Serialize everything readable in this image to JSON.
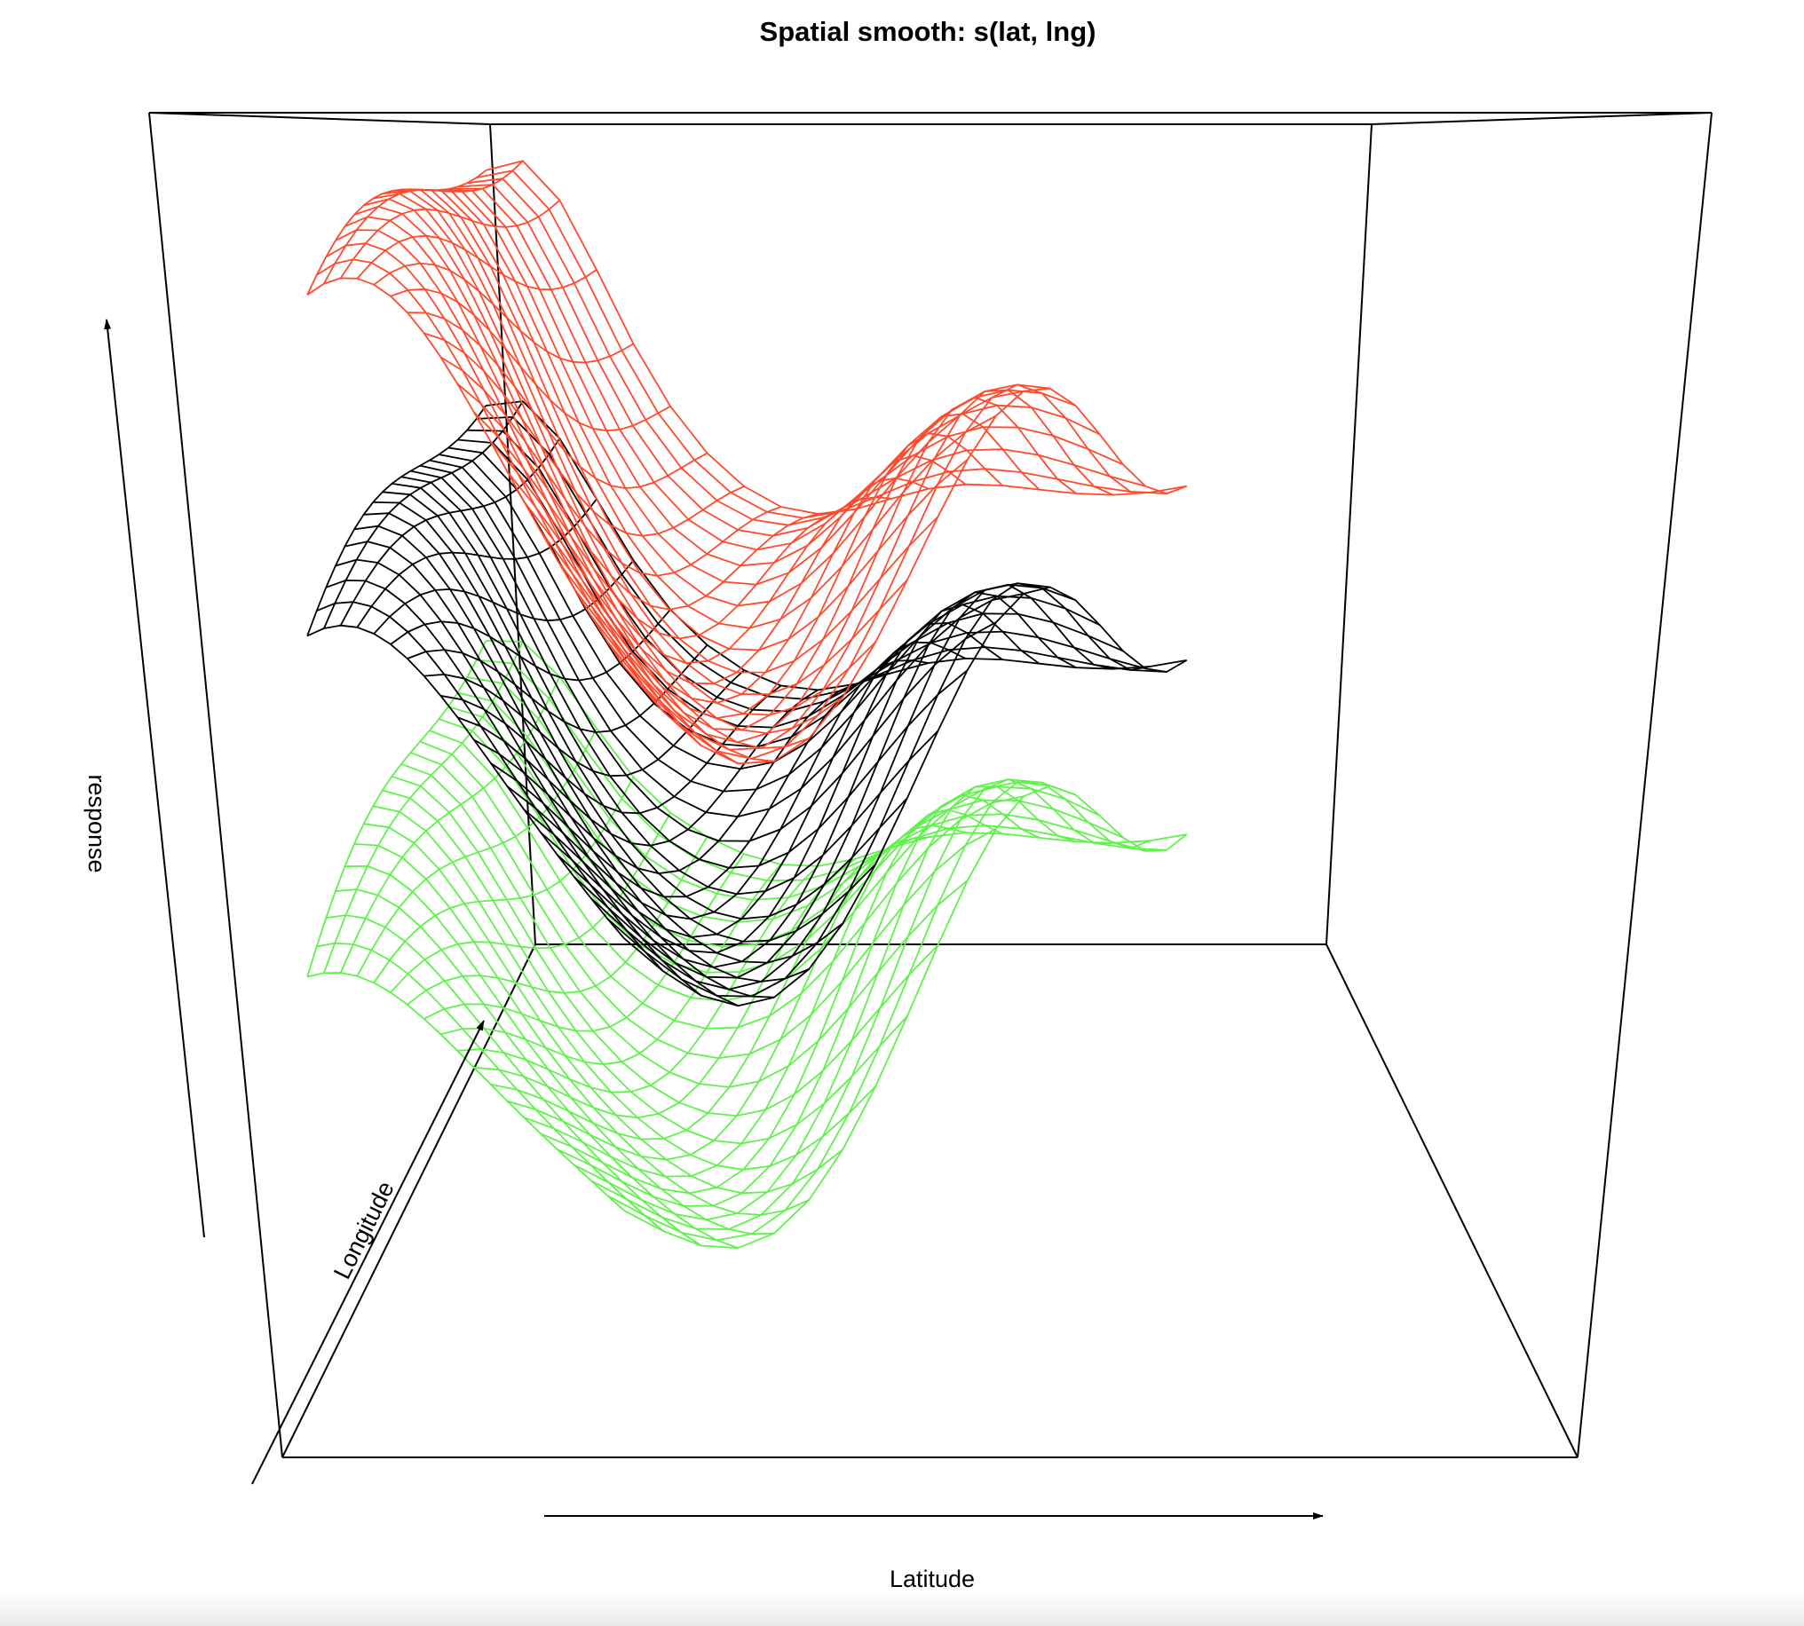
{
  "chart_data": {
    "type": "surface-3d",
    "title": "Spatial smooth: s(lat, lng)",
    "xlabel": "Latitude",
    "ylabel": "Longitude",
    "zlabel": "response",
    "ticks": false,
    "grid_resolution": [
      20,
      20
    ],
    "surfaces": [
      {
        "role": "upper",
        "color": "#ff4a2e",
        "offset": 1.0
      },
      {
        "role": "fit",
        "color": "#000000",
        "offset": 0.0
      },
      {
        "role": "lower",
        "color": "#5ff24a",
        "offset": -1.0
      }
    ]
  }
}
